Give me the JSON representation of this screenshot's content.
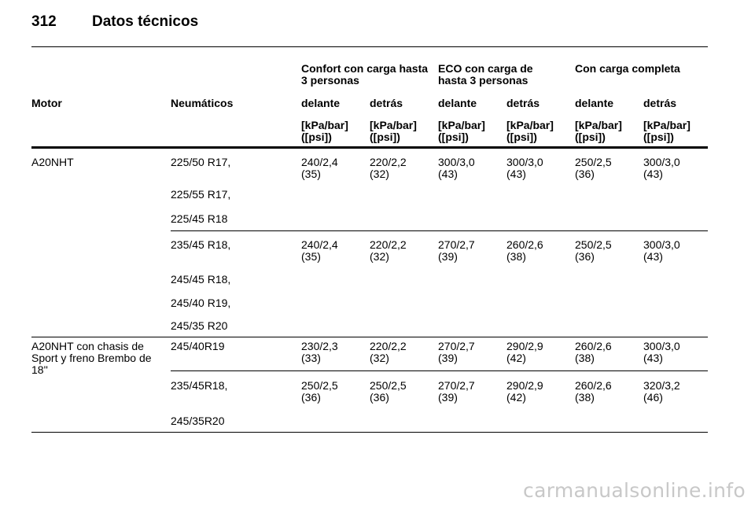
{
  "header": {
    "page_number": "312",
    "title": "Datos técnicos"
  },
  "table": {
    "group_headers": [
      "Confort con carga hasta\n3 personas",
      "ECO con carga de\nhasta 3 personas",
      "Con carga completa"
    ],
    "col_motor": "Motor",
    "col_tyres": "Neumáticos",
    "axle_headers": [
      "delante",
      "detrás",
      "delante",
      "detrás",
      "delante",
      "detrás"
    ],
    "unit_header": "[kPa/bar]\n([psi])",
    "rows": [
      {
        "values": [
          "240/2,4\n(35)",
          "220/2,2\n(32)",
          "300/3,0\n(43)",
          "300/3,0\n(43)",
          "250/2,5\n(36)",
          "300/3,0\n(43)"
        ]
      },
      {
        "values": [
          "240/2,4\n(35)",
          "220/2,2\n(32)",
          "270/2,7\n(39)",
          "260/2,6\n(38)",
          "250/2,5\n(36)",
          "300/3,0\n(43)"
        ]
      },
      {
        "values": [
          "230/2,3\n(33)",
          "220/2,2\n(32)",
          "270/2,7\n(39)",
          "290/2,9\n(42)",
          "260/2,6\n(38)",
          "300/3,0\n(43)"
        ]
      },
      {
        "values": [
          "250/2,5\n(36)",
          "250/2,5\n(36)",
          "270/2,7\n(39)",
          "290/2,9\n(42)",
          "260/2,6\n(38)",
          "320/3,2\n(46)"
        ]
      }
    ],
    "engines": [
      "A20NHT",
      "A20NHT con chasis de\nSport y freno Brembo de\n18''"
    ],
    "tyres": [
      [
        "225/50 R17,",
        "225/55 R17,",
        "225/45 R18"
      ],
      [
        "235/45 R18,",
        "245/45 R18,",
        "245/40 R19,",
        "245/35 R20"
      ],
      [
        "245/40R19"
      ],
      [
        "235/45R18,",
        "245/35R20"
      ]
    ]
  },
  "watermark": "carmanualsonline.info"
}
